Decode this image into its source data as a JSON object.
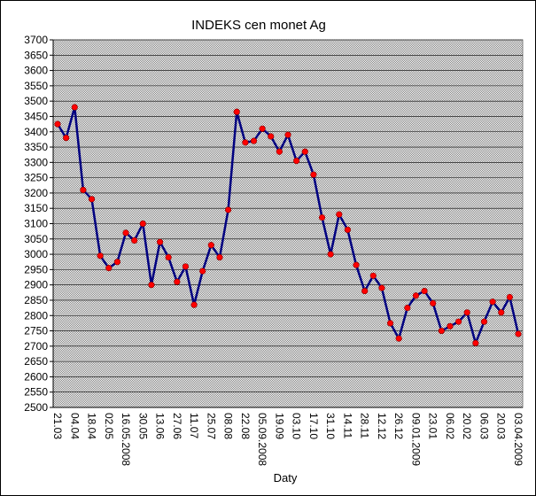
{
  "chart_data": {
    "type": "line",
    "title": "INDEKS cen monet Ag",
    "x_label": "Daty",
    "categories": [
      "21.03",
      null,
      "04.04",
      null,
      "18.04",
      null,
      "02.05",
      null,
      "16.05.2008",
      null,
      "30.05",
      null,
      "13.06",
      null,
      "27.06",
      null,
      "11.07",
      null,
      "25.07",
      null,
      "08.08",
      null,
      "22.08",
      null,
      "05.09.2008",
      null,
      "19.09",
      null,
      "03.10",
      null,
      "17.10",
      null,
      "31.10",
      null,
      "14.11",
      null,
      "28.11",
      null,
      "12.12",
      null,
      "26.12",
      null,
      "09.01.2009",
      null,
      "23.01",
      null,
      "06.02",
      null,
      "20.02",
      null,
      "06.03",
      null,
      "20.03",
      null,
      "03.04.2009"
    ],
    "series": [
      {
        "color": "#000080",
        "marker_color": "#ff0000",
        "values": [
          3425,
          3380,
          3480,
          3210,
          3180,
          2995,
          2955,
          2975,
          3070,
          3045,
          3100,
          2900,
          3040,
          2990,
          2910,
          2960,
          2835,
          2945,
          3030,
          2990,
          3145,
          3465,
          3365,
          3370,
          3410,
          3385,
          3335,
          3390,
          3305,
          3335,
          3260,
          3120,
          3000,
          3130,
          3080,
          2965,
          2880,
          2930,
          2890,
          2775,
          2725,
          2825,
          2865,
          2880,
          2840,
          2750,
          2765,
          2780,
          2810,
          2710,
          2780,
          2845,
          2810,
          2860,
          2740
        ]
      }
    ],
    "ylim": [
      2500,
      3700
    ],
    "yticks": [
      2500,
      2550,
      2600,
      2650,
      2700,
      2750,
      2800,
      2850,
      2900,
      2950,
      3000,
      3050,
      3100,
      3150,
      3200,
      3250,
      3300,
      3350,
      3400,
      3450,
      3500,
      3550,
      3600,
      3650,
      3700
    ],
    "grid": true
  }
}
